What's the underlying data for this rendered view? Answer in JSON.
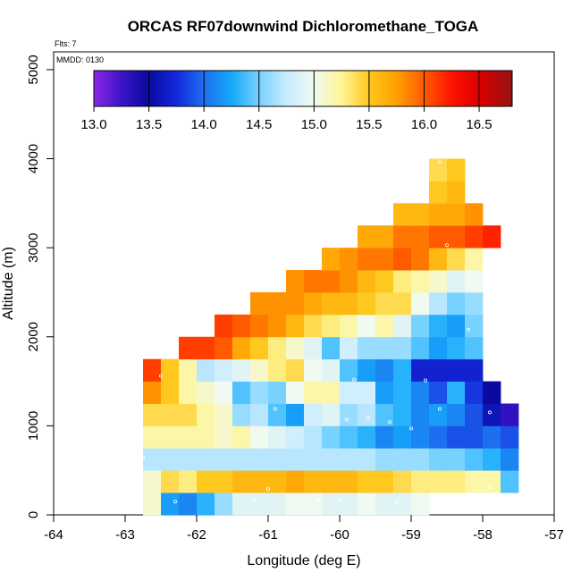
{
  "chart_data": {
    "type": "heatmap",
    "title": "ORCAS RF07downwind Dichloromethane_TOGA",
    "flights_note": "Flts: 7",
    "date_note": "MMDD: 0130",
    "xlabel": "Longitude (deg E)",
    "ylabel": "Altitude (m)",
    "xlim": [
      -64,
      -57
    ],
    "ylim": [
      0,
      5200
    ],
    "x_ticks": [
      "-64",
      "-63",
      "-62",
      "-61",
      "-60",
      "-59",
      "-58",
      "-57"
    ],
    "y_ticks": [
      "0",
      "1000",
      "2000",
      "3000",
      "4000",
      "5000"
    ],
    "colorbar": {
      "min": 13.0,
      "max": 16.8,
      "ticks": [
        "13.0",
        "13.5",
        "14.0",
        "14.5",
        "15.0",
        "15.5",
        "16.0",
        "16.5"
      ]
    },
    "cell_width_deg": 0.25,
    "cell_height_m": 250,
    "rows": [
      {
        "alt": 125,
        "lon_start": -62.75,
        "values": [
          15.1,
          14.2,
          14.1,
          14.3,
          14.6,
          14.9,
          14.9,
          14.9,
          15.0,
          15.0,
          14.9,
          14.9,
          15.0,
          14.9,
          14.9,
          15.0
        ]
      },
      {
        "alt": 375,
        "lon_start": -62.75,
        "values": [
          15.1,
          15.4,
          15.3,
          15.5,
          15.5,
          15.6,
          15.6,
          15.6,
          15.7,
          15.6,
          15.6,
          15.6,
          15.5,
          15.5,
          15.4,
          15.3,
          15.3,
          15.3,
          15.2,
          15.2,
          14.4
        ]
      },
      {
        "alt": 625,
        "lon_start": -62.75,
        "values": [
          14.7,
          14.7,
          14.7,
          14.7,
          14.7,
          14.7,
          14.7,
          14.7,
          14.7,
          14.7,
          14.7,
          14.7,
          14.7,
          14.6,
          14.6,
          14.6,
          14.5,
          14.5,
          14.4,
          14.3,
          14.1
        ]
      },
      {
        "alt": 875,
        "lon_start": -62.75,
        "values": [
          15.2,
          15.2,
          15.2,
          15.2,
          15.1,
          15.2,
          15.0,
          14.9,
          14.8,
          14.7,
          14.5,
          14.4,
          14.3,
          14.1,
          14.2,
          14.1,
          14.0,
          13.9,
          13.9,
          14.0,
          13.9
        ]
      },
      {
        "alt": 1125,
        "lon_start": -62.75,
        "values": [
          15.4,
          15.4,
          15.4,
          15.2,
          15.1,
          14.6,
          14.7,
          14.4,
          14.2,
          14.8,
          14.9,
          14.6,
          14.7,
          14.4,
          14.3,
          14.1,
          14.2,
          14.1,
          13.9,
          13.6,
          13.3
        ]
      },
      {
        "alt": 1375,
        "lon_start": -62.75,
        "values": [
          15.8,
          15.5,
          15.2,
          15.1,
          15.0,
          14.4,
          14.6,
          14.5,
          15.0,
          15.2,
          15.2,
          14.8,
          14.8,
          14.2,
          14.3,
          14.1,
          13.9,
          14.3,
          13.8,
          13.5
        ]
      },
      {
        "alt": 1625,
        "lon_start": -62.75,
        "values": [
          16.1,
          15.5,
          15.2,
          14.7,
          14.8,
          14.9,
          15.1,
          15.3,
          15.4,
          15.0,
          14.9,
          14.4,
          14.2,
          14.1,
          14.3,
          13.7,
          13.7,
          13.7,
          13.7
        ]
      },
      {
        "alt": 1875,
        "lon_start": -62.25,
        "values": [
          16.1,
          16.1,
          16.0,
          15.7,
          15.5,
          15.3,
          15.1,
          14.9,
          14.4,
          14.8,
          14.6,
          14.6,
          14.6,
          14.4,
          14.2,
          14.3,
          14.4
        ]
      },
      {
        "alt": 2125,
        "lon_start": -61.75,
        "values": [
          16.1,
          16.0,
          15.9,
          15.8,
          15.6,
          15.4,
          15.3,
          15.2,
          15.0,
          15.2,
          14.9,
          14.5,
          14.3,
          14.2,
          14.5
        ]
      },
      {
        "alt": 2375,
        "lon_start": -61.25,
        "values": [
          15.8,
          15.8,
          15.8,
          15.7,
          15.6,
          15.6,
          15.5,
          15.4,
          15.4,
          15.0,
          14.7,
          14.5,
          14.6
        ]
      },
      {
        "alt": 2625,
        "lon_start": -60.75,
        "values": [
          15.8,
          15.9,
          15.9,
          15.8,
          15.6,
          15.5,
          15.3,
          15.2,
          15.1,
          14.9,
          15.0
        ]
      },
      {
        "alt": 2875,
        "lon_start": -60.25,
        "values": [
          15.7,
          15.8,
          15.9,
          15.9,
          16.0,
          15.9,
          15.6,
          15.4,
          15.2
        ]
      },
      {
        "alt": 3125,
        "lon_start": -59.75,
        "values": [
          15.7,
          15.7,
          15.9,
          15.9,
          16.0,
          16.0,
          16.1,
          16.2
        ]
      },
      {
        "alt": 3375,
        "lon_start": -59.25,
        "values": [
          15.6,
          15.6,
          15.7,
          15.7,
          15.8
        ]
      },
      {
        "alt": 3625,
        "lon_start": -58.75,
        "values": [
          15.5,
          15.6
        ]
      },
      {
        "alt": 3875,
        "lon_start": -58.75,
        "values": [
          15.4,
          15.5
        ]
      }
    ],
    "sample_points": [
      {
        "lon": -62.5,
        "alt": 1560
      },
      {
        "lon": -62.3,
        "alt": 150
      },
      {
        "lon": -61.2,
        "alt": 160
      },
      {
        "lon": -60.9,
        "alt": 1190
      },
      {
        "lon": -61.0,
        "alt": 290
      },
      {
        "lon": -60.3,
        "alt": 170
      },
      {
        "lon": -60.0,
        "alt": 160
      },
      {
        "lon": -59.9,
        "alt": 1070
      },
      {
        "lon": -59.6,
        "alt": 1090
      },
      {
        "lon": -59.8,
        "alt": 1520
      },
      {
        "lon": -59.3,
        "alt": 1040
      },
      {
        "lon": -59.2,
        "alt": 150
      },
      {
        "lon": -59.0,
        "alt": 970
      },
      {
        "lon": -58.8,
        "alt": 1510
      },
      {
        "lon": -58.6,
        "alt": 1190
      },
      {
        "lon": -58.5,
        "alt": 3030
      },
      {
        "lon": -58.6,
        "alt": 3960
      },
      {
        "lon": -58.2,
        "alt": 2080
      },
      {
        "lon": -57.9,
        "alt": 1150
      },
      {
        "lon": -57.9,
        "alt": 310
      },
      {
        "lon": -62.75,
        "alt": 640
      }
    ]
  }
}
